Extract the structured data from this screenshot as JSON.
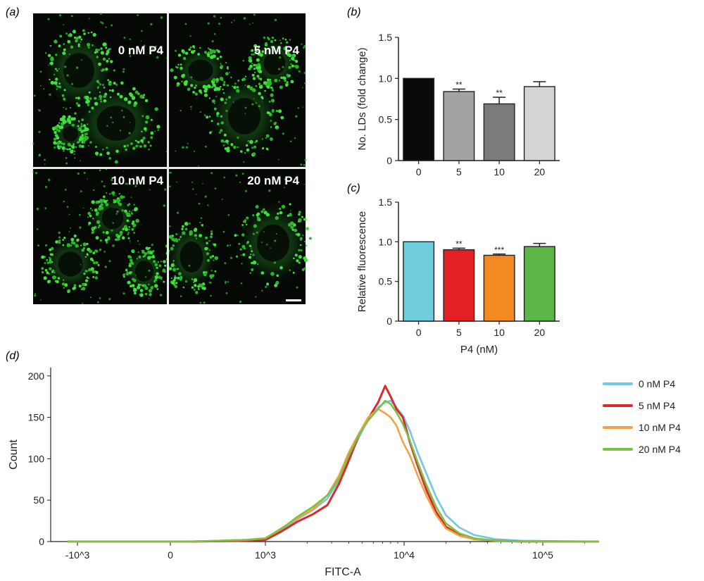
{
  "panel_labels": {
    "a": "(a)",
    "b": "(b)",
    "c": "(c)",
    "d": "(d)"
  },
  "micrographs": [
    {
      "label": "0 nM P4"
    },
    {
      "label": "5 nM P4"
    },
    {
      "label": "10 nM P4"
    },
    {
      "label": "20 nM P4"
    }
  ],
  "chart_data": [
    {
      "id": "b",
      "type": "bar",
      "panel": "(b)",
      "categories": [
        "0",
        "5",
        "10",
        "20"
      ],
      "values": [
        1.0,
        0.84,
        0.69,
        0.9
      ],
      "errors": [
        0.0,
        0.03,
        0.08,
        0.06
      ],
      "significance": [
        "",
        "**",
        "**",
        ""
      ],
      "colors": [
        "#0a0a0a",
        "#a3a3a6",
        "#7b7b7d",
        "#d4d4d6"
      ],
      "ylabel": "No. LDs (fold change)",
      "xlabel": "",
      "ylim": [
        0,
        1.5
      ],
      "yticks": [
        "0",
        "0.5",
        "1.0",
        "1.5"
      ],
      "grid": false
    },
    {
      "id": "c",
      "type": "bar",
      "panel": "(c)",
      "categories": [
        "0",
        "5",
        "10",
        "20"
      ],
      "values": [
        1.0,
        0.9,
        0.83,
        0.94
      ],
      "errors": [
        0.0,
        0.02,
        0.015,
        0.04
      ],
      "significance": [
        "",
        "**",
        "***",
        ""
      ],
      "colors": [
        "#6fcddc",
        "#e32024",
        "#f28a21",
        "#5db548"
      ],
      "ylabel": "Relative fluorescence",
      "xlabel": "P4 (nM)",
      "ylim": [
        0,
        1.5
      ],
      "yticks": [
        "0",
        "0.5",
        "1.0",
        "1.5"
      ],
      "grid": false
    },
    {
      "id": "d",
      "type": "line",
      "panel": "(d)",
      "xlabel": "FITC-A",
      "ylabel": "Count",
      "x_scale": "biexponential",
      "ylim": [
        0,
        210
      ],
      "yticks": [
        "0",
        "50",
        "100",
        "150",
        "200"
      ],
      "xticks": [
        "-10^3",
        "0",
        "10^3",
        "10^4",
        "10^5"
      ],
      "legend_position": "right",
      "series": [
        {
          "name": "0 nM P4",
          "color": "#73c7e1",
          "x": [
            -2000,
            200,
            800,
            1000,
            1300,
            1700,
            2200,
            2800,
            3400,
            4000,
            4700,
            5500,
            6500,
            7300,
            8000,
            8800,
            9800,
            11000,
            12500,
            14500,
            17000,
            20000,
            25000,
            32000,
            45000,
            70000,
            250000
          ],
          "y": [
            0,
            0,
            1,
            3,
            14,
            27,
            38,
            52,
            74,
            100,
            125,
            148,
            162,
            168,
            170,
            162,
            152,
            134,
            108,
            82,
            54,
            32,
            17,
            8,
            3,
            1,
            0
          ]
        },
        {
          "name": "5 nM P4",
          "color": "#d92b2b",
          "x": [
            -2000,
            200,
            800,
            1000,
            1300,
            1700,
            2200,
            2800,
            3400,
            4000,
            4700,
            5500,
            6500,
            7300,
            8000,
            8800,
            9800,
            11000,
            12500,
            14500,
            17000,
            20000,
            25000,
            32000,
            45000,
            70000,
            250000
          ],
          "y": [
            0,
            0,
            1,
            2,
            12,
            24,
            33,
            44,
            70,
            98,
            128,
            148,
            168,
            188,
            175,
            160,
            150,
            120,
            92,
            62,
            36,
            18,
            8,
            3,
            1,
            0,
            0
          ]
        },
        {
          "name": "10 nM P4",
          "color": "#f4a24a",
          "x": [
            -2000,
            200,
            800,
            1000,
            1300,
            1700,
            2200,
            2800,
            3400,
            4000,
            4700,
            5500,
            6500,
            7300,
            8000,
            8800,
            9800,
            11000,
            12500,
            14500,
            17000,
            20000,
            25000,
            32000,
            45000,
            70000,
            250000
          ],
          "y": [
            0,
            0,
            2,
            4,
            16,
            28,
            39,
            56,
            80,
            108,
            130,
            150,
            160,
            155,
            150,
            140,
            120,
            104,
            80,
            55,
            32,
            16,
            7,
            3,
            1,
            0,
            0
          ]
        },
        {
          "name": "20 nM P4",
          "color": "#7cc143",
          "x": [
            -2000,
            200,
            800,
            1000,
            1300,
            1700,
            2200,
            2800,
            3400,
            4000,
            4700,
            5500,
            6500,
            7300,
            8000,
            8800,
            9800,
            11000,
            12500,
            14500,
            17000,
            20000,
            25000,
            32000,
            45000,
            70000,
            250000
          ],
          "y": [
            0,
            0,
            2,
            4,
            15,
            30,
            42,
            56,
            76,
            104,
            128,
            146,
            160,
            170,
            166,
            156,
            142,
            122,
            96,
            68,
            42,
            22,
            10,
            4,
            1,
            0,
            0
          ]
        }
      ]
    }
  ]
}
